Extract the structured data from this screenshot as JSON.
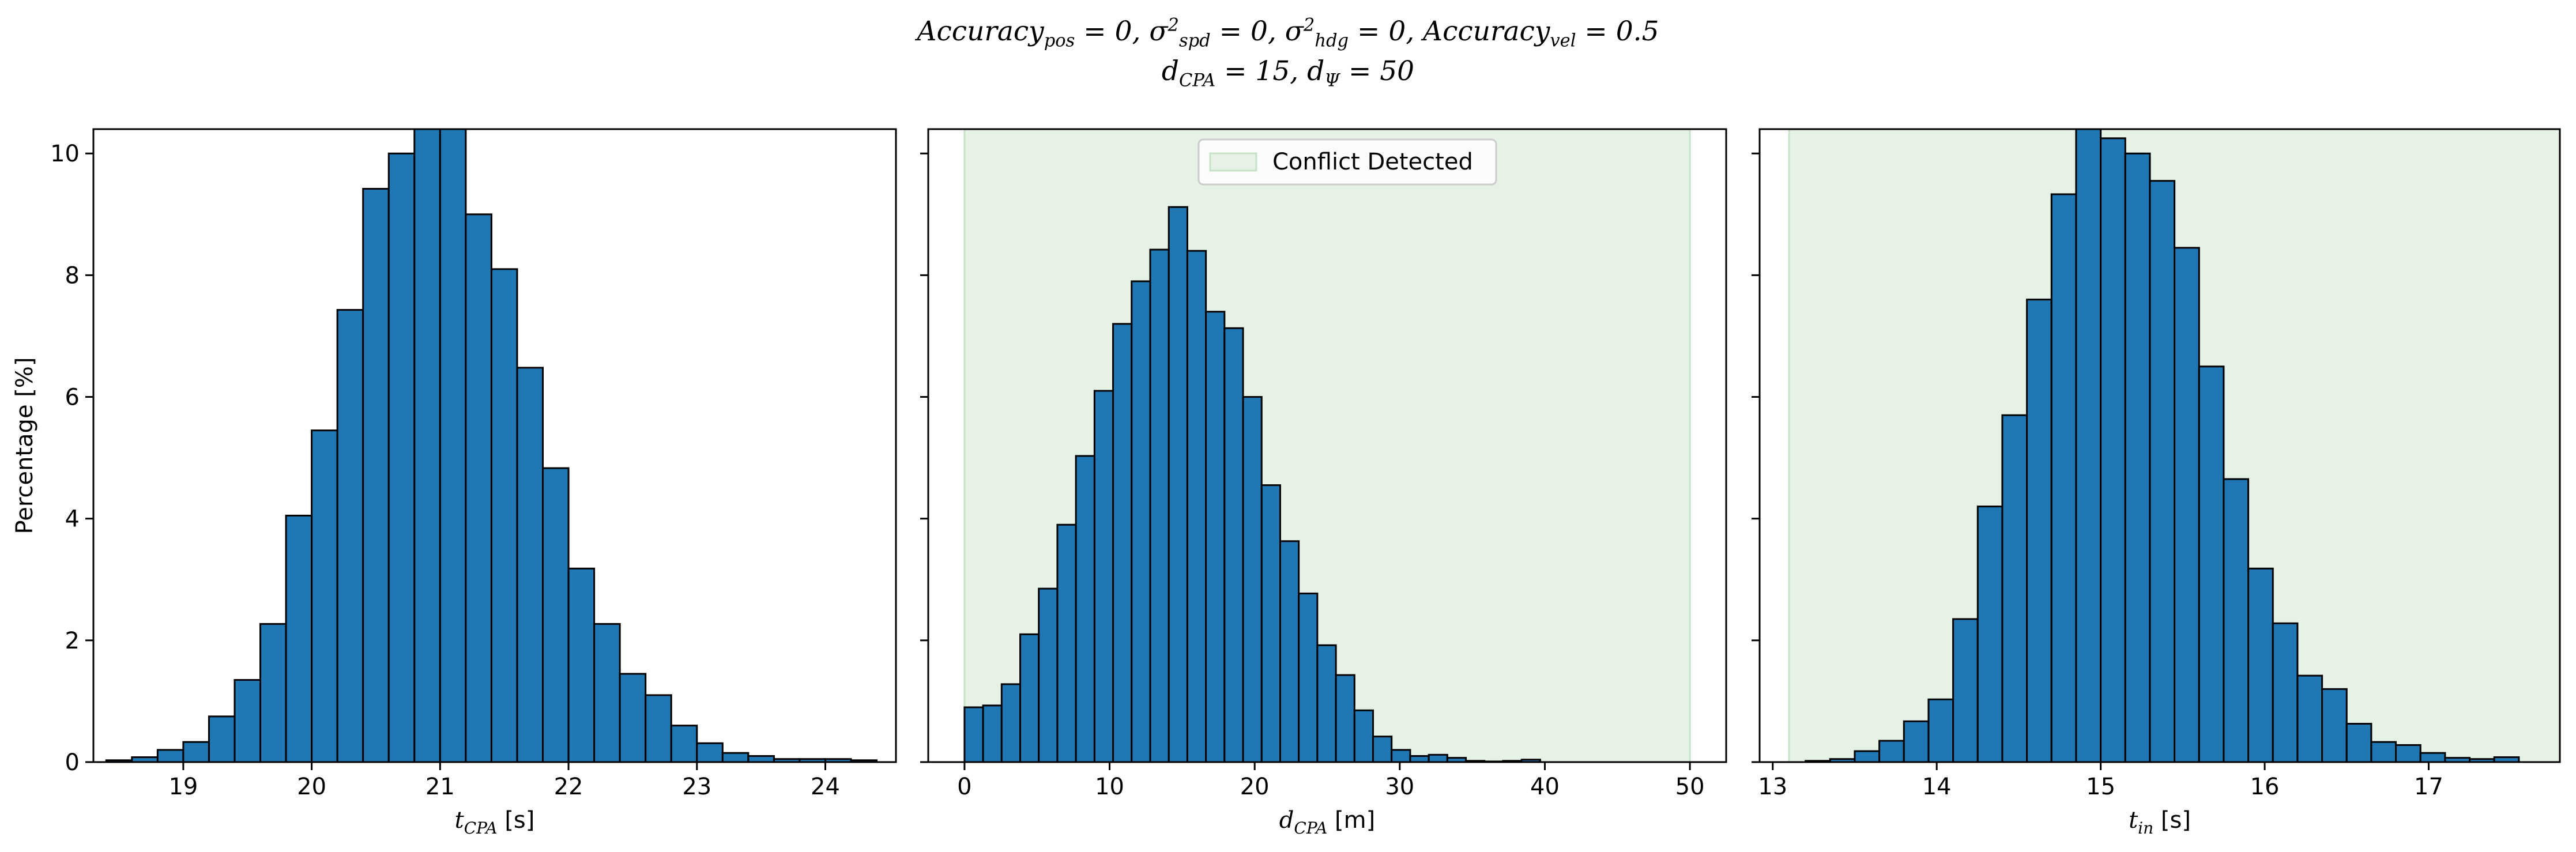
{
  "title": {
    "line1": "Accuracy_pos = 0, σ²_spd = 0, σ²_hdg = 0, Accuracy_vel = 0.5",
    "line2": "d_CPA = 15, d_Ψ = 50"
  },
  "colors": {
    "bar": "#1f77b4",
    "edge": "#000000",
    "shade": "#e5f2e5",
    "shade_edge": "#c6e3c6"
  },
  "chart_data": [
    {
      "type": "bar",
      "subtype": "histogram",
      "xlabel": "t_CPA [s]",
      "ylabel": "Percentage [%]",
      "xlim": [
        18.3,
        24.55
      ],
      "ylim": [
        0,
        10.4
      ],
      "xticks": [
        19,
        20,
        21,
        22,
        23,
        24
      ],
      "yticks": [
        0,
        2,
        4,
        6,
        8,
        10
      ],
      "grid": false,
      "bin_edges": [
        18.4,
        18.6,
        18.8,
        19.0,
        19.2,
        19.4,
        19.6,
        19.8,
        20.0,
        20.2,
        20.4,
        20.6,
        20.8,
        21.0,
        21.2,
        21.4,
        21.6,
        21.8,
        22.0,
        22.2,
        22.4,
        22.6,
        22.8,
        23.0,
        23.2,
        23.4,
        23.6,
        23.8,
        24.0,
        24.2,
        24.4
      ],
      "values": [
        0.03,
        0.08,
        0.2,
        0.33,
        0.75,
        1.35,
        2.27,
        4.05,
        5.45,
        7.43,
        9.42,
        10.0,
        10.44,
        10.4,
        9.0,
        8.1,
        6.48,
        4.83,
        3.18,
        2.27,
        1.45,
        1.1,
        0.6,
        0.31,
        0.15,
        0.1,
        0.05,
        0.05,
        0.05,
        0.03
      ]
    },
    {
      "type": "bar",
      "subtype": "histogram",
      "xlabel": "d_CPA [m]",
      "ylabel": "",
      "xlim": [
        -2.5,
        52.5
      ],
      "ylim": [
        0,
        10.4
      ],
      "xticks": [
        0,
        10,
        20,
        30,
        40,
        50
      ],
      "yticks": [
        0,
        2,
        4,
        6,
        8,
        10
      ],
      "grid": false,
      "shaded_region": {
        "x": [
          0,
          50
        ],
        "label": "Conflict Detected"
      },
      "legend": {
        "position": "upper center",
        "entries": [
          "Conflict Detected"
        ]
      },
      "bin_edges": [
        0,
        1.28,
        2.56,
        3.84,
        5.12,
        6.4,
        7.68,
        8.96,
        10.24,
        11.52,
        12.8,
        14.08,
        15.36,
        16.64,
        17.92,
        19.2,
        20.48,
        21.76,
        23.04,
        24.32,
        25.6,
        26.88,
        28.16,
        29.44,
        30.72,
        32.0,
        33.28,
        34.56,
        35.84,
        37.12,
        38.4,
        39.68
      ],
      "values": [
        0.9,
        0.93,
        1.28,
        2.1,
        2.85,
        3.9,
        5.03,
        6.1,
        7.2,
        7.9,
        8.42,
        9.12,
        8.4,
        7.4,
        7.13,
        6.0,
        4.55,
        3.63,
        2.77,
        1.92,
        1.43,
        0.85,
        0.42,
        0.2,
        0.1,
        0.12,
        0.07,
        0.02,
        0.01,
        0.02,
        0.04
      ]
    },
    {
      "type": "bar",
      "subtype": "histogram",
      "xlabel": "t_in [s]",
      "ylabel": "",
      "xlim": [
        12.92,
        17.8
      ],
      "ylim": [
        0,
        10.4
      ],
      "xticks": [
        13,
        14,
        15,
        16,
        17
      ],
      "yticks": [
        0,
        2,
        4,
        6,
        8,
        10
      ],
      "grid": false,
      "shaded_region": {
        "x": [
          13.1,
          17.8
        ],
        "label": "Conflict Detected"
      },
      "bin_edges": [
        13.2,
        13.35,
        13.5,
        13.65,
        13.8,
        13.95,
        14.1,
        14.25,
        14.4,
        14.55,
        14.7,
        14.85,
        15.0,
        15.15,
        15.3,
        15.45,
        15.6,
        15.75,
        15.9,
        16.05,
        16.2,
        16.35,
        16.5,
        16.65,
        16.8,
        16.95,
        17.1,
        17.25,
        17.4,
        17.55
      ],
      "values": [
        0.02,
        0.05,
        0.18,
        0.35,
        0.67,
        1.03,
        2.35,
        4.2,
        5.7,
        7.6,
        9.33,
        10.4,
        10.25,
        10.0,
        9.55,
        8.45,
        6.5,
        4.65,
        3.18,
        2.28,
        1.42,
        1.2,
        0.63,
        0.33,
        0.28,
        0.15,
        0.07,
        0.05,
        0.08
      ]
    }
  ]
}
